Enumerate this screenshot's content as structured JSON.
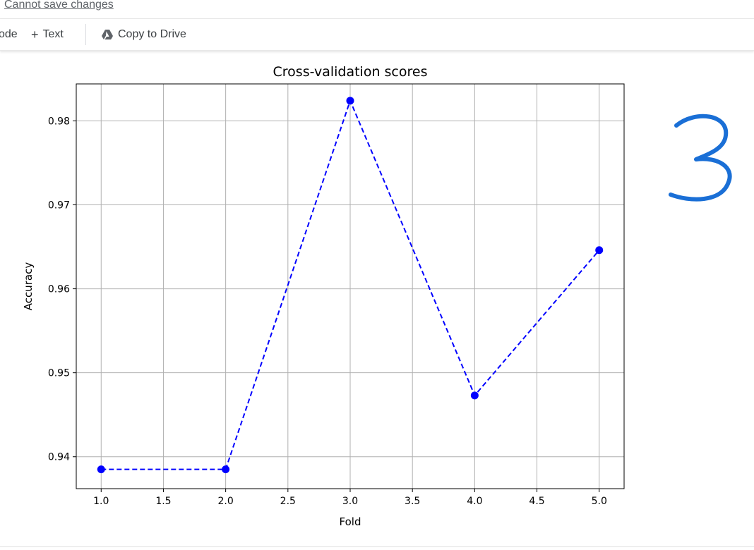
{
  "topbar": {
    "cannot_save": "Cannot save changes"
  },
  "toolbar": {
    "code_label": "ode",
    "text_label": "Text",
    "copy_to_drive_label": "Copy to Drive"
  },
  "cell": {
    "indicator": ")"
  },
  "annotation": {
    "handwritten_text": "3",
    "color": "#1a6fd6"
  },
  "chart_data": {
    "type": "line",
    "title": "Cross-validation scores",
    "xlabel": "Fold",
    "ylabel": "Accuracy",
    "x": [
      1.0,
      2.0,
      3.0,
      4.0,
      5.0
    ],
    "series": [
      {
        "values": [
          0.9385,
          0.9385,
          0.9824,
          0.9473,
          0.9646
        ],
        "color": "#0000ff",
        "style": "dashed",
        "marker": "circle"
      }
    ],
    "xlim": [
      0.8,
      5.2
    ],
    "ylim": [
      0.9362,
      0.9844
    ],
    "xticks": [
      "1.0",
      "1.5",
      "2.0",
      "2.5",
      "3.0",
      "3.5",
      "4.0",
      "4.5",
      "5.0"
    ],
    "yticks": [
      "0.94",
      "0.95",
      "0.96",
      "0.97",
      "0.98"
    ],
    "grid": true
  }
}
